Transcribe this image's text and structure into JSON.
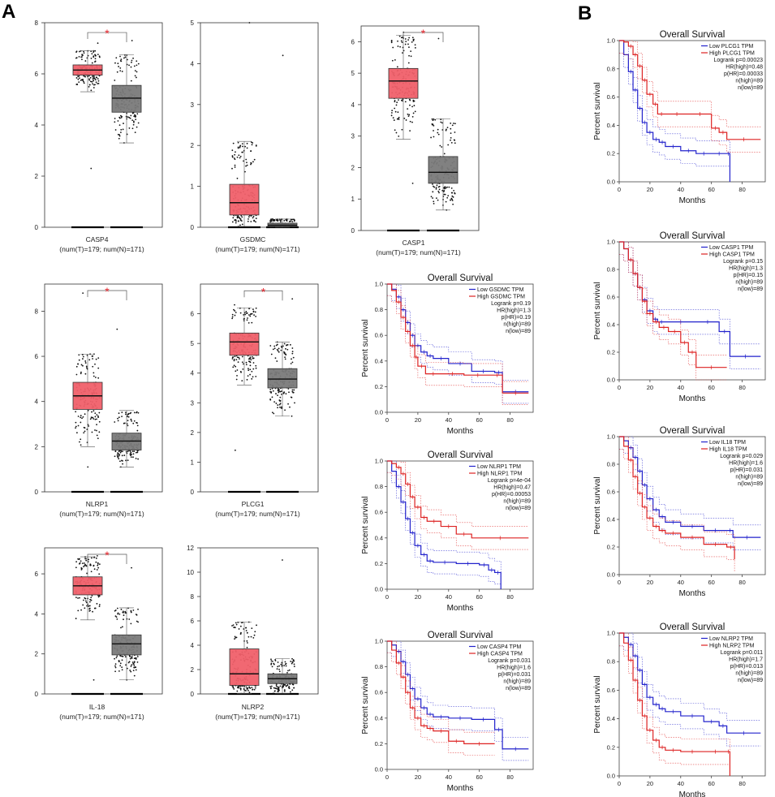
{
  "panel_labels": {
    "a": "A",
    "b": "B"
  },
  "colors": {
    "tumor": "#f0606a",
    "normal": "#7a7a7a",
    "star": "#e8232a",
    "km_low": "#2222cc",
    "km_high": "#dd2222"
  },
  "chart_data": [
    {
      "id": "casp4",
      "type": "box",
      "gene": "CASP4",
      "subtitle": "(num(T)=179; num(N)=171)",
      "ylim": [
        0,
        8
      ],
      "yticks": [
        0,
        2,
        4,
        6,
        8
      ],
      "significant": true,
      "star": "*",
      "tumor": {
        "q1": 5.95,
        "median": 6.15,
        "q3": 6.35,
        "whisker_low": 5.3,
        "whisker_high": 6.9,
        "pmin": 2.3,
        "pmax": 7.2
      },
      "normal": {
        "q1": 4.5,
        "median": 5.05,
        "q3": 5.55,
        "whisker_low": 3.3,
        "whisker_high": 6.75,
        "pmin": 3.3,
        "pmax": 7.3
      }
    },
    {
      "id": "gsdmc",
      "type": "box",
      "gene": "GSDMC",
      "subtitle": "(num(T)=179; num(N)=171)",
      "ylim": [
        0,
        5
      ],
      "yticks": [
        0,
        1,
        2,
        3,
        4,
        5
      ],
      "significant": false,
      "star": "",
      "tumor": {
        "q1": 0.3,
        "median": 0.6,
        "q3": 1.05,
        "whisker_low": 0.02,
        "whisker_high": 2.1,
        "pmin": 0.02,
        "pmax": 5.0
      },
      "normal": {
        "q1": 0.02,
        "median": 0.05,
        "q3": 0.1,
        "whisker_low": 0.0,
        "whisker_high": 0.2,
        "pmin": 0.0,
        "pmax": 4.2
      }
    },
    {
      "id": "casp1",
      "type": "box",
      "gene": "CASP1",
      "subtitle": "(num(T)=179; num(N)=171)",
      "ylim": [
        0,
        6.5
      ],
      "yticks": [
        0,
        1,
        2,
        3,
        4,
        5,
        6
      ],
      "significant": true,
      "star": "*",
      "tumor": {
        "q1": 4.2,
        "median": 4.75,
        "q3": 5.15,
        "whisker_low": 2.9,
        "whisker_high": 6.2,
        "pmin": 1.5,
        "pmax": 6.3
      },
      "normal": {
        "q1": 1.5,
        "median": 1.85,
        "q3": 2.35,
        "whisker_low": 0.65,
        "whisker_high": 3.55,
        "pmin": 0.65,
        "pmax": 6.1
      }
    },
    {
      "id": "nlrp1",
      "type": "box",
      "gene": "NLRP1",
      "subtitle": "(num(T)=179; num(N)=171)",
      "ylim": [
        0,
        9.2
      ],
      "yticks": [
        0,
        2,
        4,
        6,
        8
      ],
      "significant": true,
      "star": "*",
      "tumor": {
        "q1": 3.65,
        "median": 4.25,
        "q3": 4.85,
        "whisker_low": 2.0,
        "whisker_high": 6.1,
        "pmin": 1.1,
        "pmax": 8.8
      },
      "normal": {
        "q1": 1.85,
        "median": 2.25,
        "q3": 2.6,
        "whisker_low": 1.1,
        "whisker_high": 3.6,
        "pmin": 1.1,
        "pmax": 7.2
      }
    },
    {
      "id": "plcg1",
      "type": "box",
      "gene": "PLCG1",
      "subtitle": "(num(T)=179; num(N)=171)",
      "ylim": [
        0,
        7
      ],
      "yticks": [
        0,
        1,
        2,
        3,
        4,
        5,
        6
      ],
      "significant": true,
      "star": "*",
      "tumor": {
        "q1": 4.6,
        "median": 5.05,
        "q3": 5.35,
        "whisker_low": 3.6,
        "whisker_high": 6.2,
        "pmin": 1.4,
        "pmax": 6.3
      },
      "normal": {
        "q1": 3.5,
        "median": 3.8,
        "q3": 4.15,
        "whisker_low": 2.55,
        "whisker_high": 5.05,
        "pmin": 2.55,
        "pmax": 6.5
      }
    },
    {
      "id": "il18",
      "type": "box",
      "gene": "IL-18",
      "subtitle": "(num(T)=179; num(N)=171)",
      "ylim": [
        0,
        7.3
      ],
      "yticks": [
        0,
        2,
        4,
        6
      ],
      "significant": true,
      "star": "*",
      "tumor": {
        "q1": 4.95,
        "median": 5.4,
        "q3": 5.85,
        "whisker_low": 3.7,
        "whisker_high": 6.85,
        "pmin": 0.7,
        "pmax": 6.9
      },
      "normal": {
        "q1": 1.95,
        "median": 2.5,
        "q3": 2.95,
        "whisker_low": 0.7,
        "whisker_high": 4.3,
        "pmin": 0.7,
        "pmax": 6.3
      }
    },
    {
      "id": "nlrp2",
      "type": "box",
      "gene": "NLRP2",
      "subtitle": "(num(T)=179; num(N)=171)",
      "ylim": [
        0,
        12
      ],
      "yticks": [
        0,
        2,
        4,
        6,
        8,
        10,
        12
      ],
      "significant": false,
      "star": "",
      "tumor": {
        "q1": 0.7,
        "median": 1.65,
        "q3": 3.7,
        "whisker_low": 0.02,
        "whisker_high": 5.9,
        "pmin": 0.02,
        "pmax": 5.9
      },
      "normal": {
        "q1": 0.85,
        "median": 1.25,
        "q3": 1.65,
        "whisker_low": 0.05,
        "whisker_high": 2.9,
        "pmin": 0.05,
        "pmax": 11.0
      }
    },
    {
      "id": "km_gsdmc",
      "type": "line",
      "title": "Overall Survival",
      "xlabel": "Months",
      "ylabel": "Percent survival",
      "xlim": [
        0,
        95
      ],
      "ylim": [
        0,
        1
      ],
      "xticks": [
        0,
        20,
        40,
        60,
        80
      ],
      "yticks": [
        0.0,
        0.2,
        0.4,
        0.6,
        0.8,
        1.0
      ],
      "legend": [
        "Low GSDMC TPM",
        "High GSDMC TPM",
        "Logrank p=0.19",
        "HR(high)=1.3",
        "p(HR)=0.19",
        "n(high)=89",
        "n(low)=89"
      ],
      "series": [
        {
          "name": "Low GSDMC TPM",
          "x": [
            0,
            3,
            6,
            9,
            12,
            15,
            18,
            22,
            26,
            30,
            40,
            55,
            70,
            75,
            92
          ],
          "y": [
            1,
            0.96,
            0.9,
            0.8,
            0.7,
            0.6,
            0.52,
            0.47,
            0.44,
            0.42,
            0.38,
            0.32,
            0.31,
            0.16,
            0.16
          ]
        },
        {
          "name": "High GSDMC TPM",
          "x": [
            0,
            3,
            6,
            9,
            12,
            15,
            18,
            20,
            25,
            35,
            50,
            68,
            75,
            92
          ],
          "y": [
            1,
            0.95,
            0.86,
            0.74,
            0.63,
            0.52,
            0.43,
            0.36,
            0.3,
            0.3,
            0.29,
            0.29,
            0.15,
            0.15
          ]
        }
      ]
    },
    {
      "id": "km_nlrp1",
      "type": "line",
      "title": "Overall Survival",
      "xlabel": "Months",
      "ylabel": "Percent survival",
      "xlim": [
        0,
        95
      ],
      "ylim": [
        0,
        1
      ],
      "xticks": [
        0,
        20,
        40,
        60,
        80
      ],
      "yticks": [
        0.0,
        0.2,
        0.4,
        0.6,
        0.8,
        1.0
      ],
      "legend": [
        "Low NLRP1 TPM",
        "High NLRP1 TPM",
        "Logrank p=4e-04",
        "HR(high)=0.47",
        "p(HR)=0.00053",
        "n(high)=89",
        "n(low)=89"
      ],
      "series": [
        {
          "name": "Low NLRP1 TPM",
          "x": [
            0,
            3,
            6,
            9,
            12,
            15,
            18,
            22,
            26,
            30,
            45,
            60,
            66,
            70,
            74
          ],
          "y": [
            1,
            0.92,
            0.8,
            0.68,
            0.55,
            0.44,
            0.34,
            0.27,
            0.22,
            0.21,
            0.2,
            0.19,
            0.15,
            0.13,
            0
          ]
        },
        {
          "name": "High NLRP1 TPM",
          "x": [
            0,
            3,
            6,
            9,
            12,
            15,
            18,
            22,
            26,
            35,
            45,
            55,
            92
          ],
          "y": [
            1,
            0.98,
            0.95,
            0.9,
            0.82,
            0.72,
            0.64,
            0.56,
            0.53,
            0.49,
            0.43,
            0.4,
            0.4
          ]
        }
      ]
    },
    {
      "id": "km_casp4",
      "type": "line",
      "title": "Overall Survival",
      "xlabel": "Months",
      "ylabel": "Percent survival",
      "xlim": [
        0,
        95
      ],
      "ylim": [
        0,
        1
      ],
      "xticks": [
        0,
        20,
        40,
        60,
        80
      ],
      "yticks": [
        0.0,
        0.2,
        0.4,
        0.6,
        0.8,
        1.0
      ],
      "legend": [
        "Low CASP4 TPM",
        "High CASP4 TPM",
        "Logrank p=0.031",
        "HR(high)=1.6",
        "p(HR)=0.031",
        "n(high)=89",
        "n(low)=89"
      ],
      "series": [
        {
          "name": "Low CASP4 TPM",
          "x": [
            0,
            3,
            6,
            9,
            12,
            15,
            18,
            22,
            26,
            30,
            40,
            55,
            70,
            75,
            92
          ],
          "y": [
            1,
            0.97,
            0.92,
            0.84,
            0.74,
            0.63,
            0.55,
            0.48,
            0.43,
            0.41,
            0.4,
            0.39,
            0.31,
            0.16,
            0.16
          ]
        },
        {
          "name": "High CASP4 TPM",
          "x": [
            0,
            3,
            6,
            9,
            12,
            15,
            18,
            22,
            26,
            30,
            40,
            50,
            70
          ],
          "y": [
            1,
            0.93,
            0.83,
            0.72,
            0.6,
            0.48,
            0.4,
            0.34,
            0.32,
            0.3,
            0.22,
            0.2,
            0.2
          ]
        }
      ]
    },
    {
      "id": "km_plcg1",
      "type": "line",
      "title": "Overall Survival",
      "xlabel": "Months",
      "ylabel": "Percent survival",
      "xlim": [
        0,
        95
      ],
      "ylim": [
        0,
        1
      ],
      "xticks": [
        0,
        20,
        40,
        60,
        80
      ],
      "yticks": [
        0.0,
        0.2,
        0.4,
        0.6,
        0.8,
        1.0
      ],
      "legend": [
        "Low PLCG1 TPM",
        "High PLCG1 TPM",
        "Logrank p=0.00023",
        "HR(high)=0.48",
        "p(HR)=0.00033",
        "n(high)=89",
        "n(low)=89"
      ],
      "series": [
        {
          "name": "Low PLCG1 TPM",
          "x": [
            0,
            3,
            6,
            9,
            12,
            15,
            18,
            22,
            26,
            30,
            40,
            50,
            60,
            70,
            72
          ],
          "y": [
            1,
            0.9,
            0.78,
            0.65,
            0.52,
            0.42,
            0.35,
            0.3,
            0.28,
            0.25,
            0.22,
            0.2,
            0.2,
            0.2,
            0
          ]
        },
        {
          "name": "High PLCG1 TPM",
          "x": [
            0,
            3,
            6,
            9,
            12,
            15,
            18,
            22,
            25,
            30,
            45,
            60,
            65,
            70,
            92
          ],
          "y": [
            1,
            0.99,
            0.96,
            0.9,
            0.82,
            0.72,
            0.62,
            0.55,
            0.48,
            0.48,
            0.48,
            0.38,
            0.35,
            0.3,
            0.3
          ]
        }
      ]
    },
    {
      "id": "km_casp1",
      "type": "line",
      "title": "Overall Survival",
      "xlabel": "Months",
      "ylabel": "Percent survival",
      "xlim": [
        0,
        95
      ],
      "ylim": [
        0,
        1
      ],
      "xticks": [
        0,
        20,
        40,
        60,
        80
      ],
      "yticks": [
        0.0,
        0.2,
        0.4,
        0.6,
        0.8,
        1.0
      ],
      "legend": [
        "Low CASP1 TPM",
        "High CASP1 TPM",
        "Logrank p=0.15",
        "HR(high)=1.3",
        "p(HR)=0.15",
        "n(high)=89",
        "n(low)=89"
      ],
      "series": [
        {
          "name": "Low CASP1 TPM",
          "x": [
            0,
            3,
            6,
            9,
            12,
            15,
            18,
            22,
            25,
            30,
            50,
            65,
            72,
            92
          ],
          "y": [
            1,
            0.95,
            0.87,
            0.77,
            0.67,
            0.58,
            0.5,
            0.44,
            0.42,
            0.42,
            0.42,
            0.35,
            0.17,
            0.17
          ]
        },
        {
          "name": "High CASP1 TPM",
          "x": [
            0,
            3,
            6,
            9,
            12,
            15,
            18,
            22,
            26,
            32,
            40,
            45,
            50,
            70
          ],
          "y": [
            1,
            0.95,
            0.87,
            0.77,
            0.67,
            0.57,
            0.48,
            0.42,
            0.38,
            0.35,
            0.27,
            0.2,
            0.09,
            0.09
          ]
        }
      ]
    },
    {
      "id": "km_il18",
      "type": "line",
      "title": "Overall Survival",
      "xlabel": "Months",
      "ylabel": "Percent survival",
      "xlim": [
        0,
        95
      ],
      "ylim": [
        0,
        1
      ],
      "xticks": [
        0,
        20,
        40,
        60,
        80
      ],
      "yticks": [
        0.0,
        0.2,
        0.4,
        0.6,
        0.8,
        1.0
      ],
      "legend": [
        "Low IL18 TPM",
        "High IL18 TPM",
        "Logrank p=0.029",
        "HR(high)=1.6",
        "p(HR)=0.031",
        "n(high)=89",
        "n(low)=89"
      ],
      "series": [
        {
          "name": "Low IL18 TPM",
          "x": [
            0,
            3,
            6,
            9,
            12,
            15,
            18,
            22,
            26,
            30,
            40,
            55,
            70,
            74,
            92
          ],
          "y": [
            1,
            0.97,
            0.92,
            0.85,
            0.75,
            0.65,
            0.55,
            0.47,
            0.42,
            0.38,
            0.35,
            0.32,
            0.32,
            0.27,
            0.27
          ]
        },
        {
          "name": "High IL18 TPM",
          "x": [
            0,
            3,
            6,
            9,
            12,
            15,
            18,
            22,
            26,
            30,
            40,
            55,
            70,
            75
          ],
          "y": [
            1,
            0.93,
            0.83,
            0.71,
            0.59,
            0.49,
            0.41,
            0.35,
            0.32,
            0.3,
            0.27,
            0.22,
            0.2,
            0.11
          ]
        }
      ]
    },
    {
      "id": "km_nlrp2",
      "type": "line",
      "title": "Overall Survival",
      "xlabel": "Months",
      "ylabel": "Percent survival",
      "xlim": [
        0,
        95
      ],
      "ylim": [
        0,
        1
      ],
      "xticks": [
        0,
        20,
        40,
        60,
        80
      ],
      "yticks": [
        0.0,
        0.2,
        0.4,
        0.6,
        0.8,
        1.0
      ],
      "legend": [
        "Low NLRP2 TPM",
        "High NLRP2 TPM",
        "Logrank p=0.011",
        "HR(high)=1.7",
        "p(HR)=0.013",
        "n(high)=89",
        "n(low)=89"
      ],
      "series": [
        {
          "name": "Low NLRP2 TPM",
          "x": [
            0,
            3,
            6,
            9,
            12,
            15,
            18,
            22,
            26,
            30,
            40,
            55,
            65,
            70,
            92
          ],
          "y": [
            1,
            0.97,
            0.92,
            0.84,
            0.74,
            0.64,
            0.55,
            0.5,
            0.47,
            0.45,
            0.42,
            0.38,
            0.35,
            0.3,
            0.3
          ]
        },
        {
          "name": "High NLRP2 TPM",
          "x": [
            0,
            3,
            6,
            9,
            12,
            15,
            18,
            22,
            26,
            30,
            40,
            55,
            70,
            72
          ],
          "y": [
            1,
            0.93,
            0.81,
            0.67,
            0.53,
            0.42,
            0.32,
            0.25,
            0.2,
            0.18,
            0.17,
            0.17,
            0.17,
            0
          ]
        }
      ]
    }
  ]
}
